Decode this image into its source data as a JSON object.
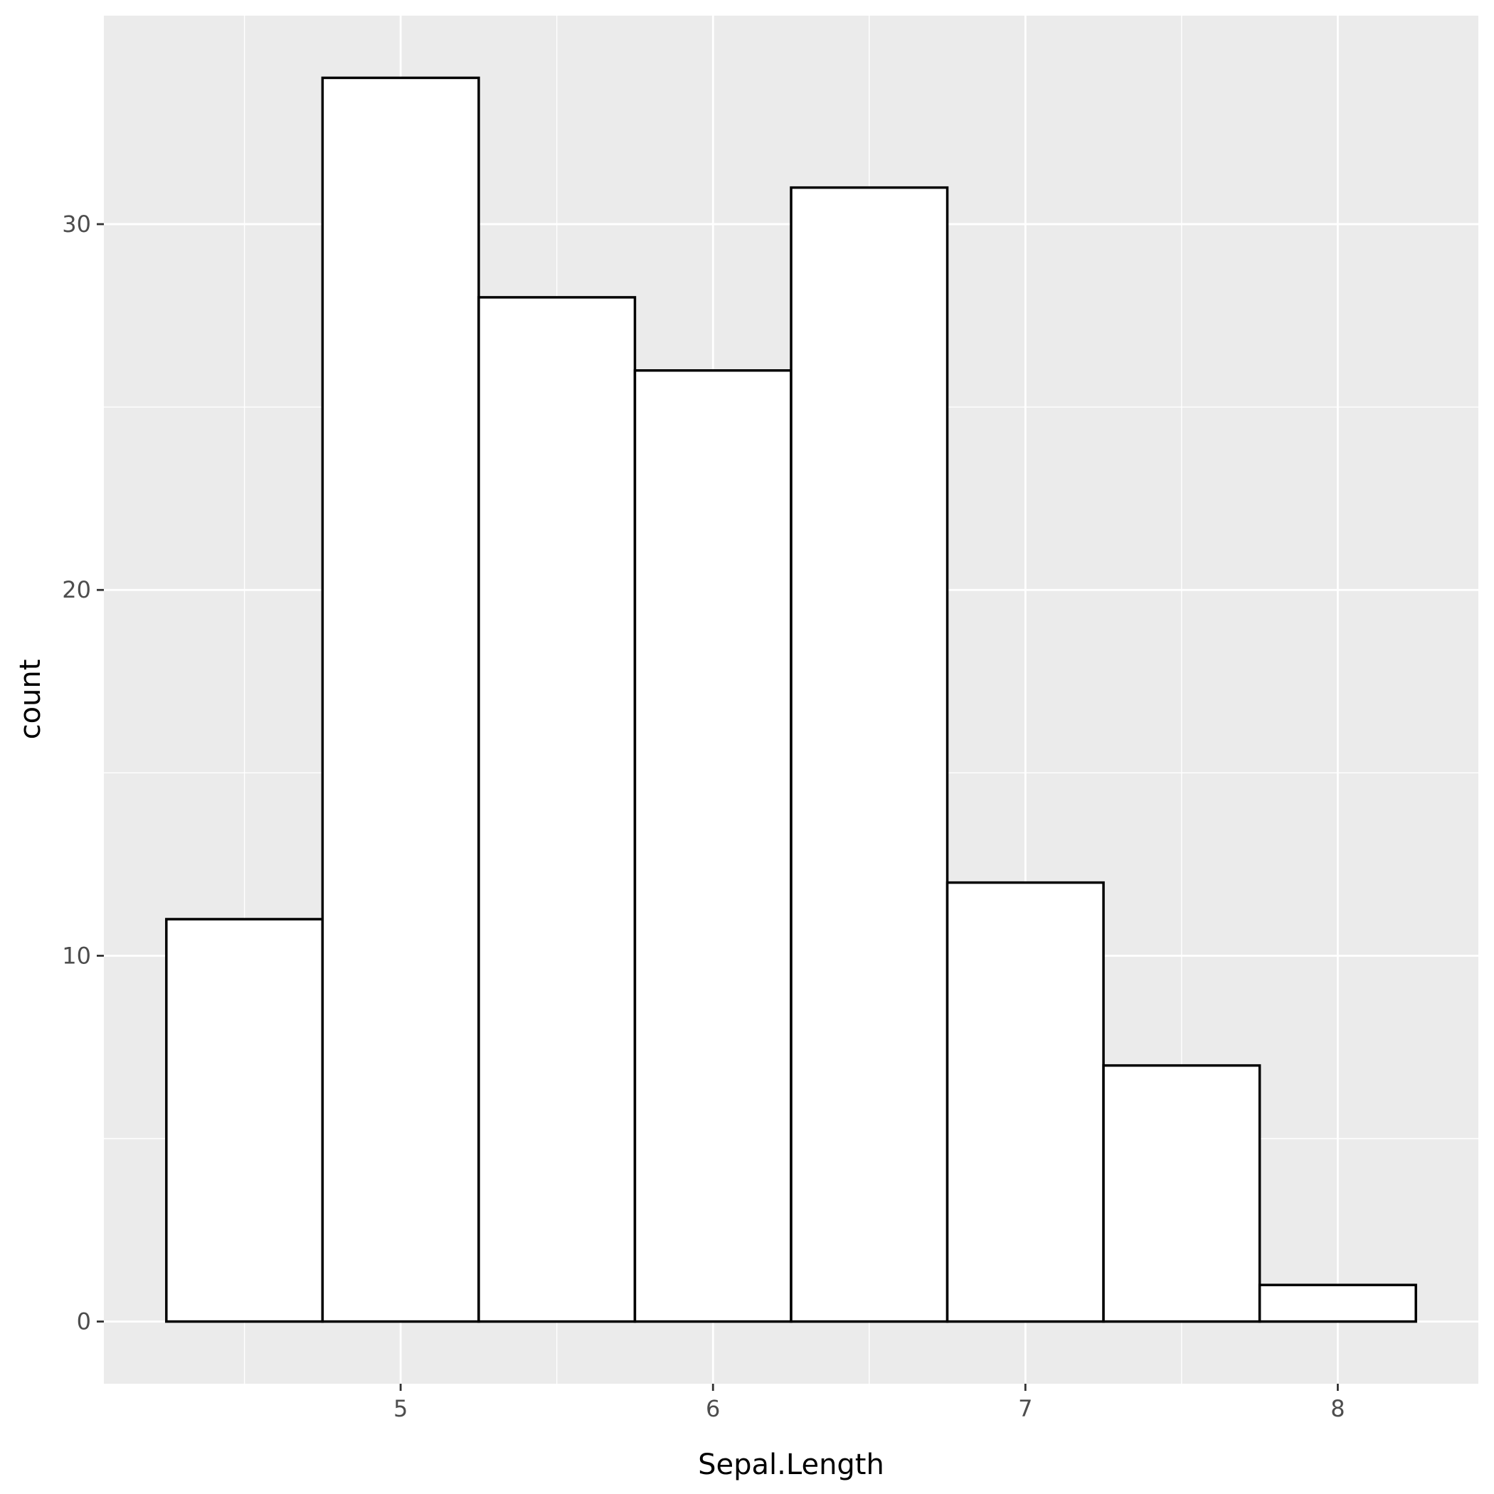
{
  "chart_data": {
    "type": "bar",
    "histogram": true,
    "bins": [
      {
        "x0": 4.25,
        "x1": 4.75,
        "count": 11
      },
      {
        "x0": 4.75,
        "x1": 5.25,
        "count": 34
      },
      {
        "x0": 5.25,
        "x1": 5.75,
        "count": 28
      },
      {
        "x0": 5.75,
        "x1": 6.25,
        "count": 26
      },
      {
        "x0": 6.25,
        "x1": 6.75,
        "count": 31
      },
      {
        "x0": 6.75,
        "x1": 7.25,
        "count": 12
      },
      {
        "x0": 7.25,
        "x1": 7.75,
        "count": 7
      },
      {
        "x0": 7.75,
        "x1": 8.25,
        "count": 1
      }
    ],
    "xlabel": "Sepal.Length",
    "ylabel": "count",
    "xlim": [
      4.05,
      8.45
    ],
    "ylim": [
      -1.7,
      35.7
    ],
    "x_ticks": [
      5,
      6,
      7,
      8
    ],
    "x_tick_labels": [
      "5",
      "6",
      "7",
      "8"
    ],
    "y_ticks": [
      0,
      10,
      20,
      30
    ],
    "y_tick_labels": [
      "0",
      "10",
      "20",
      "30"
    ],
    "x_minor_ticks": [
      4.5,
      5.5,
      6.5,
      7.5
    ],
    "y_minor_ticks": [
      5,
      15,
      25
    ],
    "grid": true,
    "legend": "none",
    "colors": {
      "panel_background": "#EBEBEB",
      "grid_line": "#FFFFFF",
      "bar_fill": "#FFFFFF",
      "bar_outline": "#000000",
      "tick_label": "#4D4D4D",
      "tick_mark": "#333333",
      "axis_title": "#000000"
    }
  }
}
